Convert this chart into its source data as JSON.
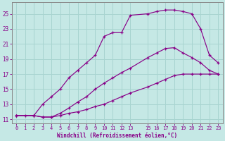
{
  "xlabel": "Windchill (Refroidissement éolien,°C)",
  "background_color": "#c5e8e5",
  "grid_color": "#a8d4d0",
  "line_color": "#880088",
  "spine_color": "#888888",
  "xlim": [
    -0.5,
    23.5
  ],
  "ylim": [
    10.5,
    26.5
  ],
  "xticks": [
    0,
    1,
    2,
    3,
    4,
    5,
    6,
    7,
    8,
    9,
    10,
    11,
    12,
    13,
    15,
    16,
    17,
    18,
    19,
    20,
    21,
    22,
    23
  ],
  "yticks": [
    11,
    13,
    15,
    17,
    19,
    21,
    23,
    25
  ],
  "curve1_x": [
    0,
    1,
    2,
    3,
    4,
    5,
    6,
    7,
    8,
    9,
    10,
    11,
    12,
    13,
    15,
    16,
    17,
    18,
    19,
    20,
    21,
    22,
    23
  ],
  "curve1_y": [
    11.5,
    11.5,
    11.5,
    13.0,
    14.0,
    15.0,
    16.5,
    17.5,
    18.5,
    19.5,
    22.0,
    22.5,
    22.5,
    24.8,
    25.0,
    25.3,
    25.5,
    25.5,
    25.3,
    25.0,
    23.0,
    19.5,
    18.5
  ],
  "curve2_x": [
    0,
    2,
    3,
    4,
    5,
    6,
    7,
    8,
    9,
    10,
    11,
    12,
    13,
    15,
    16,
    17,
    18,
    19,
    20,
    21,
    22,
    23
  ],
  "curve2_y": [
    11.5,
    11.5,
    11.3,
    11.3,
    11.8,
    12.5,
    13.3,
    14.0,
    15.0,
    15.8,
    16.5,
    17.2,
    17.8,
    19.2,
    19.8,
    20.4,
    20.5,
    19.8,
    19.2,
    18.5,
    17.5,
    17.0
  ],
  "curve3_x": [
    0,
    2,
    3,
    4,
    5,
    6,
    7,
    8,
    9,
    10,
    11,
    12,
    13,
    15,
    16,
    17,
    18,
    19,
    20,
    21,
    22,
    23
  ],
  "curve3_y": [
    11.5,
    11.5,
    11.3,
    11.3,
    11.5,
    11.8,
    12.0,
    12.3,
    12.7,
    13.0,
    13.5,
    14.0,
    14.5,
    15.3,
    15.8,
    16.3,
    16.8,
    17.0,
    17.0,
    17.0,
    17.0,
    17.0
  ]
}
